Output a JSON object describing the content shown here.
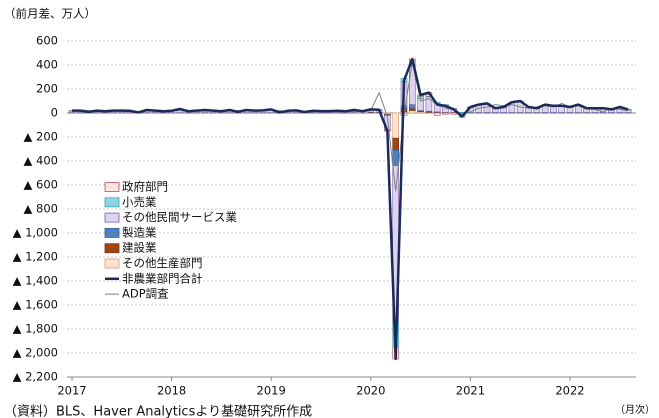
{
  "chart_data": {
    "type": "bar",
    "y_label": "（前月差、万人）",
    "x_unit": "（月次）",
    "source": "（資料）BLS、Haver Analyticsより基礎研究所作成",
    "grid": true,
    "categories": [
      "2017",
      null,
      null,
      null,
      null,
      null,
      null,
      null,
      null,
      null,
      null,
      null,
      "2018",
      null,
      null,
      null,
      null,
      null,
      null,
      null,
      null,
      null,
      null,
      null,
      "2019",
      null,
      null,
      null,
      null,
      null,
      null,
      null,
      null,
      null,
      null,
      null,
      "2020",
      null,
      null,
      null,
      null,
      null,
      null,
      null,
      null,
      null,
      null,
      null,
      "2021",
      null,
      null,
      null,
      null,
      null,
      null,
      null,
      null,
      null,
      null,
      null,
      "2022",
      null,
      null,
      null,
      null,
      null,
      null,
      null
    ],
    "ylim": [
      -2200,
      600
    ],
    "yticks": [
      600,
      400,
      200,
      0,
      {
        "value": -200,
        "label": "▲ 200"
      },
      {
        "value": -400,
        "label": "▲ 400"
      },
      {
        "value": -600,
        "label": "▲ 600"
      },
      {
        "value": -800,
        "label": "▲ 800"
      },
      {
        "value": -1000,
        "label": "▲ 1,000"
      },
      {
        "value": -1200,
        "label": "▲ 1,200"
      },
      {
        "value": -1400,
        "label": "▲ 1,400"
      },
      {
        "value": -1600,
        "label": "▲ 1,600"
      },
      {
        "value": -1800,
        "label": "▲ 1,800"
      },
      {
        "value": -2000,
        "label": "▲ 2,000"
      },
      {
        "value": -2200,
        "label": "▲ 2,200"
      }
    ],
    "series": [
      {
        "name": "政府部門",
        "type": "bar",
        "color": "#fbe4e4",
        "stroke": "#c0504d",
        "values": [
          2,
          2,
          2,
          2,
          2,
          2,
          2,
          2,
          2,
          2,
          2,
          2,
          2,
          2,
          2,
          2,
          2,
          2,
          2,
          2,
          2,
          2,
          2,
          2,
          2,
          2,
          2,
          2,
          2,
          2,
          2,
          2,
          2,
          2,
          2,
          2,
          2,
          3,
          -5,
          -100,
          -20,
          10,
          10,
          30,
          -20,
          -10,
          -10,
          0,
          3,
          3,
          3,
          3,
          3,
          3,
          3,
          3,
          3,
          3,
          3,
          3,
          3,
          3,
          3,
          3,
          3,
          3,
          3,
          3
        ]
      },
      {
        "name": "小売業",
        "type": "bar",
        "color": "#92d4e2",
        "stroke": "#31a3b8",
        "values": [
          1,
          1,
          1,
          1,
          1,
          1,
          1,
          1,
          1,
          1,
          1,
          1,
          1,
          1,
          1,
          1,
          1,
          1,
          1,
          1,
          1,
          1,
          1,
          1,
          1,
          1,
          1,
          1,
          1,
          1,
          1,
          1,
          1,
          1,
          1,
          1,
          1,
          1,
          -5,
          -210,
          30,
          40,
          20,
          5,
          10,
          10,
          0,
          1,
          2,
          2,
          2,
          2,
          2,
          2,
          2,
          2,
          2,
          2,
          2,
          2,
          2,
          2,
          2,
          2,
          2,
          2,
          2,
          2
        ]
      },
      {
        "name": "その他民間サービス業",
        "type": "bar",
        "color": "#dcd3ec",
        "stroke": "#7a5fa8",
        "values": [
          14,
          14,
          4,
          14,
          9,
          14,
          14,
          12,
          -1,
          19,
          14,
          9,
          12,
          27,
          9,
          14,
          19,
          14,
          9,
          19,
          4,
          19,
          14,
          16,
          24,
          -1,
          12,
          16,
          2,
          12,
          10,
          10,
          12,
          9,
          20,
          9,
          20,
          18,
          -120,
          -1300,
          200,
          330,
          100,
          120,
          70,
          55,
          35,
          -35,
          41,
          61,
          71,
          31,
          41,
          81,
          91,
          41,
          31,
          61,
          51,
          51,
          41,
          61,
          31,
          31,
          31,
          21,
          41,
          21
        ]
      },
      {
        "name": "製造業",
        "type": "bar",
        "color": "#4f81bd",
        "stroke": "#2f5f9d",
        "values": [
          1,
          1,
          1,
          1,
          1,
          1,
          1,
          1,
          1,
          1,
          1,
          1,
          1,
          1,
          1,
          1,
          1,
          1,
          1,
          1,
          1,
          1,
          1,
          1,
          1,
          1,
          1,
          1,
          1,
          1,
          1,
          1,
          1,
          1,
          1,
          1,
          1,
          1,
          -5,
          -130,
          20,
          30,
          5,
          5,
          5,
          2,
          2,
          2,
          2,
          2,
          2,
          2,
          2,
          2,
          2,
          2,
          2,
          2,
          2,
          2,
          2,
          2,
          2,
          2,
          2,
          2,
          2,
          2
        ]
      },
      {
        "name": "建設業",
        "type": "bar",
        "color": "#a0450f",
        "stroke": "#7a330a",
        "values": [
          1,
          1,
          1,
          1,
          1,
          1,
          1,
          1,
          1,
          1,
          1,
          1,
          1,
          1,
          1,
          1,
          1,
          1,
          1,
          1,
          1,
          1,
          1,
          1,
          1,
          1,
          1,
          1,
          1,
          1,
          1,
          1,
          1,
          1,
          1,
          1,
          4,
          3,
          -5,
          -100,
          30,
          20,
          5,
          5,
          3,
          2,
          2,
          1,
          1,
          1,
          1,
          1,
          1,
          1,
          1,
          1,
          1,
          1,
          1,
          1,
          1,
          1,
          1,
          1,
          1,
          1,
          1,
          1
        ]
      },
      {
        "name": "その他生産部門",
        "type": "bar",
        "color": "#fde3cf",
        "stroke": "#d99a6c",
        "values": [
          1,
          1,
          1,
          1,
          1,
          1,
          1,
          1,
          1,
          1,
          1,
          1,
          1,
          1,
          1,
          1,
          1,
          1,
          1,
          1,
          1,
          1,
          1,
          1,
          1,
          1,
          1,
          1,
          1,
          1,
          1,
          1,
          1,
          1,
          1,
          1,
          2,
          1,
          -10,
          -210,
          10,
          20,
          10,
          5,
          2,
          1,
          1,
          1,
          1,
          1,
          1,
          1,
          1,
          1,
          1,
          1,
          1,
          1,
          1,
          1,
          1,
          1,
          1,
          1,
          1,
          1,
          1,
          1
        ]
      },
      {
        "name": "非農業部門合計",
        "type": "line",
        "color": "#1b2a56",
        "width": 2.5,
        "values": [
          20,
          20,
          10,
          20,
          15,
          20,
          20,
          18,
          5,
          25,
          20,
          15,
          18,
          33,
          15,
          20,
          25,
          20,
          15,
          25,
          10,
          25,
          20,
          22,
          30,
          5,
          18,
          22,
          8,
          18,
          16,
          16,
          18,
          15,
          26,
          15,
          30,
          27,
          -150,
          -2050,
          270,
          450,
          150,
          170,
          70,
          60,
          30,
          -30,
          50,
          70,
          80,
          40,
          50,
          90,
          100,
          50,
          40,
          70,
          60,
          60,
          50,
          70,
          40,
          40,
          40,
          30,
          50,
          30
        ]
      },
      {
        "name": "ADP調査",
        "type": "line",
        "color": "#808080",
        "width": 1,
        "values": [
          25,
          25,
          20,
          18,
          20,
          15,
          18,
          20,
          10,
          23,
          18,
          20,
          22,
          24,
          20,
          18,
          18,
          18,
          20,
          16,
          20,
          22,
          18,
          25,
          25,
          18,
          15,
          25,
          5,
          10,
          15,
          18,
          12,
          12,
          10,
          20,
          20,
          170,
          -30,
          -650,
          -20,
          430,
          100,
          120,
          70,
          40,
          30,
          -10,
          10,
          40,
          50,
          70,
          60,
          70,
          50,
          40,
          50,
          60,
          50,
          80,
          50,
          60,
          40,
          30,
          10,
          40,
          30,
          20
        ]
      }
    ]
  }
}
